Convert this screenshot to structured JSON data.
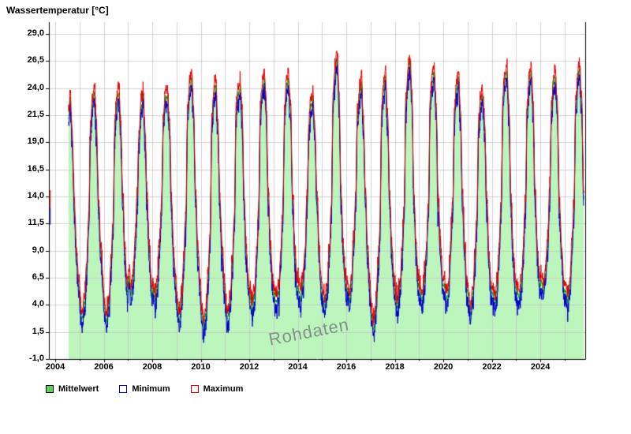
{
  "chart_data": {
    "type": "area",
    "title": "Wassertemperatur [°C]",
    "watermark": "Rohdaten",
    "x_axis": {
      "tick_labels": [
        "2004",
        "2006",
        "2008",
        "2010",
        "2012",
        "2014",
        "2016",
        "2018",
        "2020",
        "2022",
        "2024"
      ],
      "tick_years": [
        2004,
        2006,
        2008,
        2010,
        2012,
        2014,
        2016,
        2018,
        2020,
        2022,
        2024
      ]
    },
    "y_axis": {
      "tick_labels": [
        "-1,0",
        "1,5",
        "4,0",
        "6,5",
        "9,0",
        "11,5",
        "14,0",
        "16,5",
        "19,0",
        "21,5",
        "24,0",
        "26,5",
        "29,0"
      ],
      "tick_values": [
        -1.0,
        1.5,
        4.0,
        6.5,
        9.0,
        11.5,
        14.0,
        16.5,
        19.0,
        21.5,
        24.0,
        26.5,
        29.0
      ]
    },
    "x_range": [
      2003.74,
      2025.85
    ],
    "y_range": [
      -1.0,
      30.1
    ],
    "record_start": 2004.55,
    "record_end": 2025.79,
    "initial_sample": {
      "t": 2003.8,
      "mean": 13.0,
      "min": 11.4,
      "max": 14.6
    },
    "series": [
      {
        "name": "Mittelwert",
        "type": "area"
      },
      {
        "name": "Minimum",
        "type": "line"
      },
      {
        "name": "Maximum",
        "type": "line"
      }
    ],
    "legend": [
      {
        "label": "Mittelwert",
        "fill": "#55d455",
        "border": "#000000"
      },
      {
        "label": "Minimum",
        "fill": "#ffffff",
        "border": "#0000cc"
      },
      {
        "label": "Maximum",
        "fill": "#ffffff",
        "border": "#e00000"
      }
    ],
    "colors": {
      "area_fill": "#bdf6bd",
      "mean_stroke": "#009900",
      "min_line": "#0000cc",
      "max_line": "#e00000",
      "grid": "#c3c3c3",
      "axis": "#000000",
      "watermark": "#7a8881"
    },
    "years": [
      {
        "year": 2004,
        "trough_mean": null,
        "trough_min": null,
        "peak_mean": 23.0,
        "peak_max": 24.0
      },
      {
        "year": 2005,
        "trough_mean": 2.8,
        "trough_min": 2.0,
        "peak_mean": 23.3,
        "peak_max": 24.1
      },
      {
        "year": 2006,
        "trough_mean": 2.3,
        "trough_min": 1.6,
        "peak_mean": 23.6,
        "peak_max": 24.3
      },
      {
        "year": 2007,
        "trough_mean": 5.2,
        "trough_min": 4.4,
        "peak_mean": 23.0,
        "peak_max": 24.0
      },
      {
        "year": 2008,
        "trough_mean": 4.2,
        "trough_min": 3.3,
        "peak_mean": 23.6,
        "peak_max": 24.6
      },
      {
        "year": 2009,
        "trough_mean": 2.8,
        "trough_min": 2.0,
        "peak_mean": 24.8,
        "peak_max": 25.7
      },
      {
        "year": 2010,
        "trough_mean": 1.5,
        "trough_min": 0.8,
        "peak_mean": 24.2,
        "peak_max": 25.1
      },
      {
        "year": 2011,
        "trough_mean": 2.6,
        "trough_min": 1.8,
        "peak_mean": 24.5,
        "peak_max": 25.4
      },
      {
        "year": 2012,
        "trough_mean": 3.4,
        "trough_min": 2.4,
        "peak_mean": 24.7,
        "peak_max": 25.4
      },
      {
        "year": 2013,
        "trough_mean": 3.8,
        "trough_min": 3.0,
        "peak_mean": 24.9,
        "peak_max": 25.6
      },
      {
        "year": 2014,
        "trough_mean": 4.6,
        "trough_min": 3.8,
        "peak_mean": 23.2,
        "peak_max": 24.3
      },
      {
        "year": 2015,
        "trough_mean": 3.9,
        "trough_min": 3.1,
        "peak_mean": 26.4,
        "peak_max": 27.6
      },
      {
        "year": 2016,
        "trough_mean": 4.3,
        "trough_min": 3.5,
        "peak_mean": 24.3,
        "peak_max": 25.2
      },
      {
        "year": 2017,
        "trough_mean": 2.0,
        "trough_min": 1.3,
        "peak_mean": 24.6,
        "peak_max": 25.5
      },
      {
        "year": 2018,
        "trough_mean": 3.6,
        "trough_min": 2.8,
        "peak_mean": 26.1,
        "peak_max": 27.1
      },
      {
        "year": 2019,
        "trough_mean": 4.1,
        "trough_min": 3.2,
        "peak_mean": 25.4,
        "peak_max": 26.3
      },
      {
        "year": 2020,
        "trough_mean": 4.3,
        "trough_min": 3.4,
        "peak_mean": 25.0,
        "peak_max": 26.0
      },
      {
        "year": 2021,
        "trough_mean": 3.3,
        "trough_min": 2.5,
        "peak_mean": 23.6,
        "peak_max": 24.4
      },
      {
        "year": 2022,
        "trough_mean": 4.1,
        "trough_min": 3.2,
        "peak_mean": 25.7,
        "peak_max": 26.6
      },
      {
        "year": 2023,
        "trough_mean": 4.5,
        "trough_min": 3.6,
        "peak_mean": 25.4,
        "peak_max": 26.4
      },
      {
        "year": 2024,
        "trough_mean": 5.0,
        "trough_min": 4.1,
        "peak_mean": 25.2,
        "peak_max": 26.2
      },
      {
        "year": 2025,
        "trough_mean": 4.0,
        "trough_min": 3.1,
        "peak_mean": 25.8,
        "peak_max": 26.6
      }
    ]
  }
}
